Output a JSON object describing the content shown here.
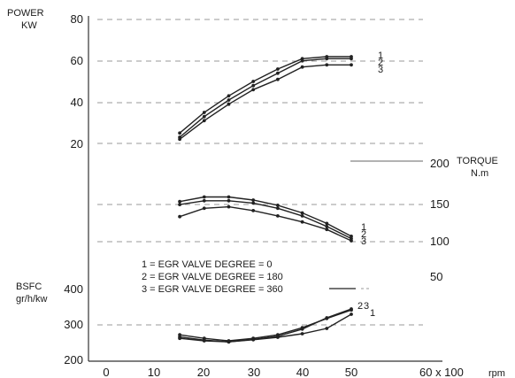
{
  "chart_data": {
    "type": "line",
    "x_axis": {
      "label": "60 x 100",
      "unit": "rpm",
      "ticks": [
        "0",
        "10",
        "20",
        "30",
        "40",
        "50"
      ],
      "range": [
        0,
        60
      ]
    },
    "legend": [
      "1 = EGR VALVE DEGREE = 0",
      "2 = EGR VALVE DEGREE = 180",
      "3 = EGR VALVE DEGREE = 360"
    ],
    "panels": [
      {
        "key": "power",
        "label_line1": "POWER",
        "label_line2": "KW",
        "axis_side": "left",
        "range": [
          20,
          80
        ],
        "ticks": [
          "80",
          "60",
          "40",
          "20"
        ],
        "curve_labels": [
          "1",
          "2",
          "3"
        ],
        "series": [
          {
            "id": "1",
            "x": [
              15,
              20,
              25,
              30,
              35,
              40,
              45,
              50
            ],
            "y": [
              25,
              35,
              43,
              50,
              56,
              61,
              62,
              62
            ]
          },
          {
            "id": "2",
            "x": [
              15,
              20,
              25,
              30,
              35,
              40,
              45,
              50
            ],
            "y": [
              23,
              33,
              41,
              48,
              54,
              60,
              61,
              61
            ]
          },
          {
            "id": "3",
            "x": [
              15,
              20,
              25,
              30,
              35,
              40,
              45,
              50
            ],
            "y": [
              22,
              31,
              39,
              46,
              51,
              57,
              58,
              58
            ]
          }
        ]
      },
      {
        "key": "torque",
        "label_line1": "TORQUE",
        "label_line2": "N.m",
        "axis_side": "right",
        "range": [
          50,
          200
        ],
        "ticks": [
          "200",
          "150",
          "100",
          "50"
        ],
        "curve_labels": [
          "1",
          "2",
          "3"
        ],
        "series": [
          {
            "id": "1",
            "x": [
              15,
              20,
              25,
              30,
              35,
              40,
              45,
              50
            ],
            "y": [
              150,
              156,
              156,
              152,
              145,
              135,
              121,
              104
            ]
          },
          {
            "id": "2",
            "x": [
              15,
              20,
              25,
              30,
              35,
              40,
              45,
              50
            ],
            "y": [
              146,
              151,
              151,
              148,
              141,
              131,
              117,
              101
            ]
          },
          {
            "id": "3",
            "x": [
              15,
              20,
              25,
              30,
              35,
              40,
              45,
              50
            ],
            "y": [
              130,
              141,
              143,
              138,
              131,
              123,
              113,
              98
            ]
          }
        ]
      },
      {
        "key": "bsfc",
        "label_line1": "BSFC",
        "label_line2": "gr/h/kw",
        "axis_side": "left",
        "range": [
          200,
          400
        ],
        "ticks": [
          "400",
          "300",
          "200"
        ],
        "curve_labels": [
          "2",
          "3",
          "1"
        ],
        "series": [
          {
            "id": "1",
            "x": [
              15,
              20,
              25,
              30,
              35,
              40,
              45,
              50
            ],
            "y": [
              262,
              255,
              252,
              258,
              265,
              275,
              290,
              330
            ]
          },
          {
            "id": "2",
            "x": [
              15,
              20,
              25,
              30,
              35,
              40,
              45,
              50
            ],
            "y": [
              266,
              257,
              252,
              259,
              268,
              288,
              320,
              345
            ]
          },
          {
            "id": "3",
            "x": [
              15,
              20,
              25,
              30,
              35,
              40,
              45,
              50
            ],
            "y": [
              272,
              262,
              255,
              262,
              272,
              292,
              318,
              342
            ]
          }
        ]
      }
    ]
  }
}
